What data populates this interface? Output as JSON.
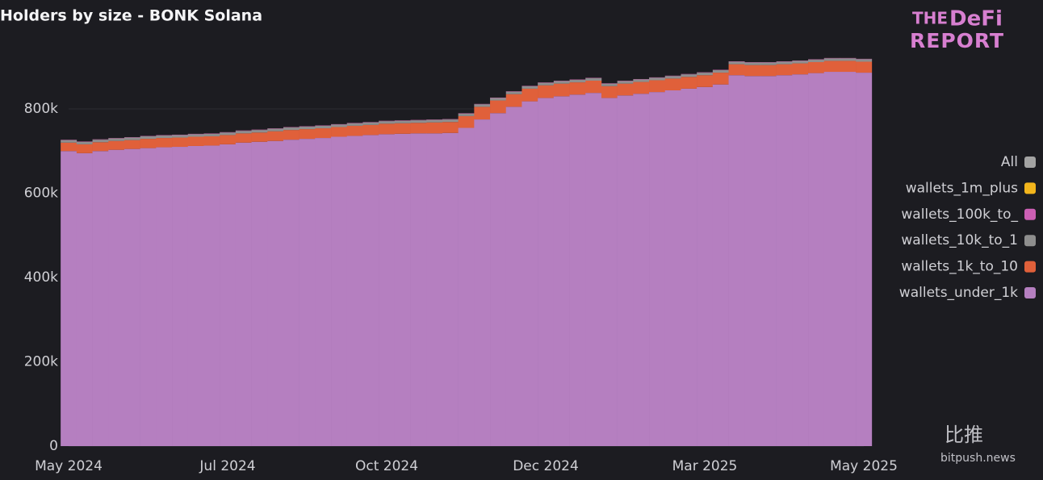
{
  "chart_data": {
    "type": "stacked-bar",
    "title": "Holders by size - BONK Solana",
    "categories": [
      "May 2024",
      null,
      null,
      null,
      null,
      null,
      null,
      null,
      null,
      null,
      "Jul 2024",
      null,
      null,
      null,
      null,
      null,
      null,
      null,
      null,
      null,
      "Oct 2024",
      null,
      null,
      null,
      null,
      null,
      null,
      null,
      null,
      null,
      "Dec 2024",
      null,
      null,
      null,
      null,
      null,
      null,
      null,
      null,
      null,
      "Mar 2025",
      null,
      null,
      null,
      null,
      null,
      null,
      null,
      null,
      null,
      "May 2025"
    ],
    "series": [
      {
        "name": "wallets_under_1k",
        "color": "#b57fc0",
        "values": [
          700000,
          695000,
          700000,
          703000,
          705000,
          707000,
          709000,
          710000,
          712000,
          713000,
          716000,
          720000,
          722000,
          724000,
          727000,
          729000,
          731000,
          734000,
          736000,
          738000,
          740000,
          741000,
          742000,
          742000,
          743000,
          755000,
          775000,
          790000,
          805000,
          818000,
          826000,
          830000,
          834000,
          838000,
          826000,
          832000,
          836000,
          840000,
          844000,
          848000,
          852000,
          858000,
          880000,
          878000,
          878000,
          880000,
          882000,
          885000,
          888000,
          888000,
          886000
        ]
      },
      {
        "name": "wallets_1k_to_10",
        "color": "#e0603a",
        "values": [
          20000,
          21000,
          21000,
          21000,
          21000,
          22000,
          22000,
          22000,
          22000,
          22000,
          22000,
          22000,
          22000,
          23000,
          23000,
          23000,
          23000,
          23000,
          24000,
          24000,
          25000,
          25000,
          25000,
          26000,
          26000,
          28000,
          30000,
          30000,
          30000,
          30000,
          30000,
          30000,
          29000,
          29000,
          28000,
          28000,
          28000,
          28000,
          28000,
          28000,
          28000,
          28000,
          26000,
          26000,
          26000,
          26000,
          26000,
          26000,
          26000,
          26000,
          26000
        ]
      },
      {
        "name": "wallets_10k_to_1",
        "color": "#8e8e8e",
        "values": [
          6000,
          6000,
          6000,
          6000,
          6000,
          6000,
          6000,
          6000,
          6000,
          6000,
          6000,
          6000,
          6000,
          6000,
          6000,
          6000,
          6000,
          6000,
          6000,
          6000,
          6000,
          6000,
          6000,
          6000,
          6000,
          6000,
          6000,
          6000,
          6000,
          6000,
          6000,
          6000,
          6000,
          6000,
          6000,
          6000,
          6000,
          6000,
          6000,
          6000,
          6000,
          6000,
          6000,
          6000,
          6000,
          6000,
          6000,
          6000,
          6000,
          6000,
          6000
        ]
      },
      {
        "name": "wallets_100k_to_",
        "color": "#cc5fb4",
        "values": [
          800,
          800,
          800,
          800,
          800,
          800,
          800,
          800,
          800,
          800,
          800,
          800,
          800,
          800,
          800,
          800,
          800,
          800,
          800,
          800,
          800,
          800,
          800,
          800,
          800,
          800,
          800,
          800,
          800,
          800,
          800,
          800,
          800,
          800,
          800,
          800,
          800,
          800,
          800,
          800,
          800,
          800,
          800,
          800,
          800,
          800,
          800,
          800,
          800,
          800,
          800
        ]
      },
      {
        "name": "wallets_1m_plus",
        "color": "#f2b51c",
        "values": [
          50,
          50,
          50,
          50,
          50,
          50,
          50,
          50,
          50,
          50,
          50,
          50,
          50,
          50,
          50,
          50,
          50,
          50,
          50,
          50,
          50,
          50,
          50,
          50,
          50,
          50,
          50,
          50,
          50,
          50,
          50,
          50,
          50,
          50,
          50,
          50,
          50,
          50,
          50,
          50,
          50,
          50,
          50,
          50,
          50,
          50,
          50,
          50,
          50,
          50,
          50
        ]
      },
      {
        "name": "All",
        "color": "#a3a3a3"
      }
    ],
    "ylim": [
      0,
      1000000
    ],
    "yticks": [
      0,
      {
        "value": 200000,
        "label": "200k"
      },
      {
        "value": 400000,
        "label": "400k"
      },
      {
        "value": 600000,
        "label": "600k"
      },
      {
        "value": 800000,
        "label": "800k"
      }
    ],
    "grid": true,
    "legend": "right"
  },
  "branding": {
    "logo": [
      "THE",
      "DeFi",
      "REPORT"
    ],
    "watermark": [
      "比推",
      "bitpush.news"
    ]
  }
}
